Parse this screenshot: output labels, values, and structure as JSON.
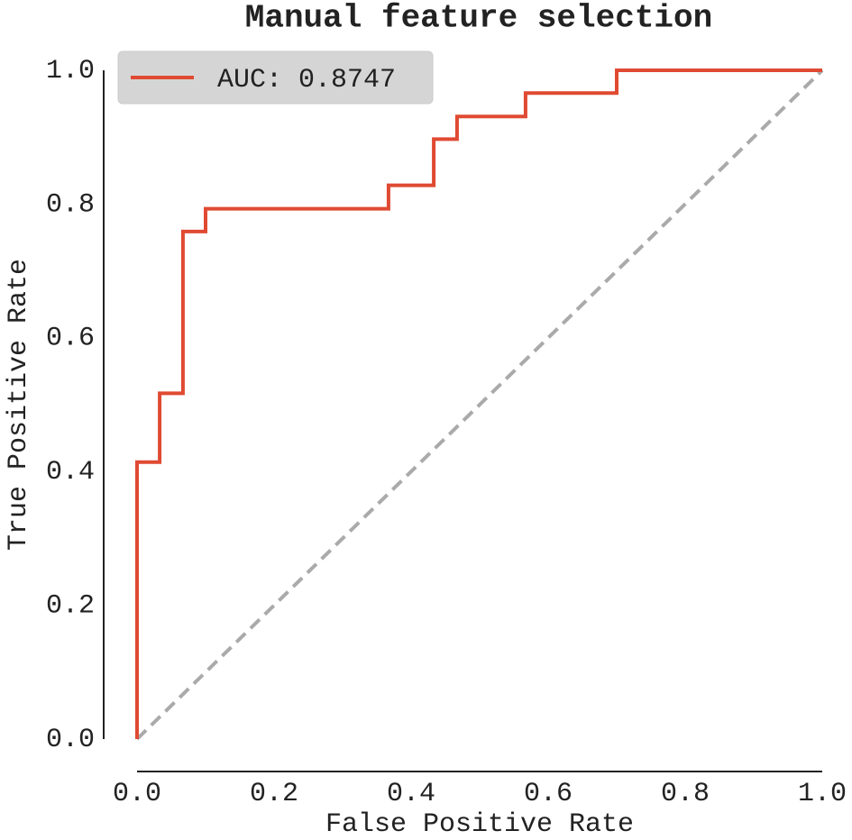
{
  "chart_data": {
    "type": "line",
    "title": "Manual feature selection",
    "xlabel": "False Positive Rate",
    "ylabel": "True Positive Rate",
    "legend": "upper left",
    "series": [
      {
        "name": "AUC: 0.8747",
        "color": "#e04a32",
        "x": [
          0,
          0,
          0.033,
          0.033,
          0.067,
          0.067,
          0.1,
          0.1,
          0.367,
          0.367,
          0.433,
          0.433,
          0.467,
          0.467,
          0.567,
          0.567,
          0.7,
          0.7,
          1
        ],
        "values": [
          0,
          0.414,
          0.414,
          0.517,
          0.517,
          0.759,
          0.759,
          0.793,
          0.793,
          0.828,
          0.828,
          0.897,
          0.897,
          0.931,
          0.931,
          0.966,
          0.966,
          1,
          1
        ]
      },
      {
        "color": "#aaaaaa",
        "dashed": true,
        "x": [
          0,
          1
        ],
        "values": [
          0,
          1
        ]
      }
    ],
    "xlim": [
      0,
      1
    ],
    "ylim": [
      0,
      1
    ],
    "xticks": [
      {
        "value": 0,
        "label": "0.0"
      },
      0.2,
      0.4,
      0.6,
      0.8,
      {
        "value": 1,
        "label": "1.0"
      }
    ],
    "yticks": [
      {
        "value": 0,
        "label": "0.0"
      },
      0.2,
      0.4,
      0.6,
      0.8,
      {
        "value": 1,
        "label": "1.0"
      }
    ]
  }
}
